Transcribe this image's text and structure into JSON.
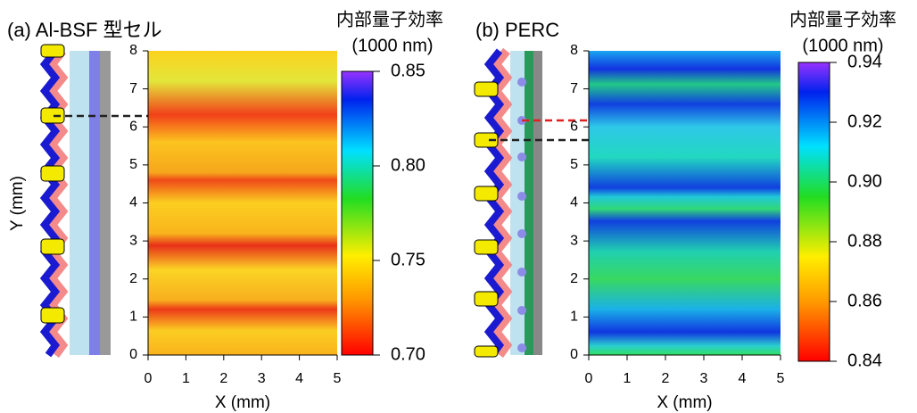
{
  "chart_data": [
    {
      "type": "heatmap",
      "title": "(a) Al-BSF 型セル",
      "xlabel": "X (mm)",
      "ylabel": "Y (mm)",
      "xlim": [
        0,
        5
      ],
      "xticks": [
        0,
        1,
        2,
        3,
        4,
        5
      ],
      "ylim": [
        0,
        8
      ],
      "yticks": [
        0,
        1,
        2,
        3,
        4,
        5,
        6,
        7,
        8
      ],
      "colorbar_label": [
        "内部量子効率",
        "(1000 nm)"
      ],
      "clim": [
        0.7,
        0.85
      ],
      "cticks": [
        {
          "value": 0.7,
          "label": "0.70"
        },
        0.75,
        {
          "value": 0.8,
          "label": "0.80"
        },
        0.85
      ]
    },
    {
      "type": "heatmap",
      "title": "(b) PERC",
      "xlabel": "X (mm)",
      "xlim": [
        0,
        5
      ],
      "xticks": [
        0,
        1,
        2,
        3,
        4,
        5
      ],
      "ylim": [
        0,
        8
      ],
      "yticks": [
        0,
        1,
        2,
        3,
        4,
        5,
        6,
        7,
        8
      ],
      "colorbar_label": [
        "内部量子効率",
        "(1000 nm)"
      ],
      "clim": [
        0.84,
        0.94
      ],
      "cticks": [
        0.84,
        0.86,
        0.88,
        {
          "value": 0.9,
          "label": "0.90"
        },
        0.92,
        0.94
      ]
    }
  ]
}
